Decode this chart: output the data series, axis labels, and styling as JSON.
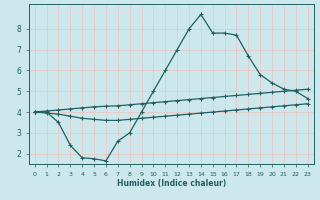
{
  "xlabel": "Humidex (Indice chaleur)",
  "background_color": "#cce8ec",
  "grid_color": "#e8c8c8",
  "line_color": "#206060",
  "xlim": [
    -0.5,
    23.5
  ],
  "ylim": [
    1.5,
    9.2
  ],
  "x": [
    0,
    1,
    2,
    3,
    4,
    5,
    6,
    7,
    8,
    9,
    10,
    11,
    12,
    13,
    14,
    15,
    16,
    17,
    18,
    19,
    20,
    21,
    22,
    23
  ],
  "line1_y": [
    4.0,
    4.0,
    3.5,
    2.4,
    1.8,
    1.75,
    1.65,
    2.6,
    3.0,
    4.0,
    5.0,
    6.0,
    7.0,
    8.0,
    8.7,
    7.8,
    7.8,
    7.7,
    6.7,
    5.8,
    5.4,
    5.1,
    5.0,
    4.65
  ],
  "line2_y": [
    4.0,
    4.05,
    4.1,
    4.15,
    4.2,
    4.25,
    4.28,
    4.3,
    4.35,
    4.4,
    4.45,
    4.5,
    4.55,
    4.6,
    4.65,
    4.7,
    4.75,
    4.8,
    4.85,
    4.9,
    4.95,
    5.0,
    5.05,
    5.1
  ],
  "line3_y": [
    4.0,
    3.95,
    3.9,
    3.8,
    3.7,
    3.65,
    3.6,
    3.6,
    3.65,
    3.7,
    3.75,
    3.8,
    3.85,
    3.9,
    3.95,
    4.0,
    4.05,
    4.1,
    4.15,
    4.2,
    4.25,
    4.3,
    4.35,
    4.4
  ],
  "xtick_labels": [
    "0",
    "1",
    "2",
    "3",
    "4",
    "5",
    "6",
    "7",
    "8",
    "9",
    "10",
    "11",
    "12",
    "13",
    "14",
    "15",
    "16",
    "17",
    "18",
    "19",
    "20",
    "21",
    "22",
    "23"
  ],
  "ytick_vals": [
    2,
    3,
    4,
    5,
    6,
    7,
    8
  ],
  "ytick_labels": [
    "2",
    "3",
    "4",
    "5",
    "6",
    "7",
    "8"
  ]
}
